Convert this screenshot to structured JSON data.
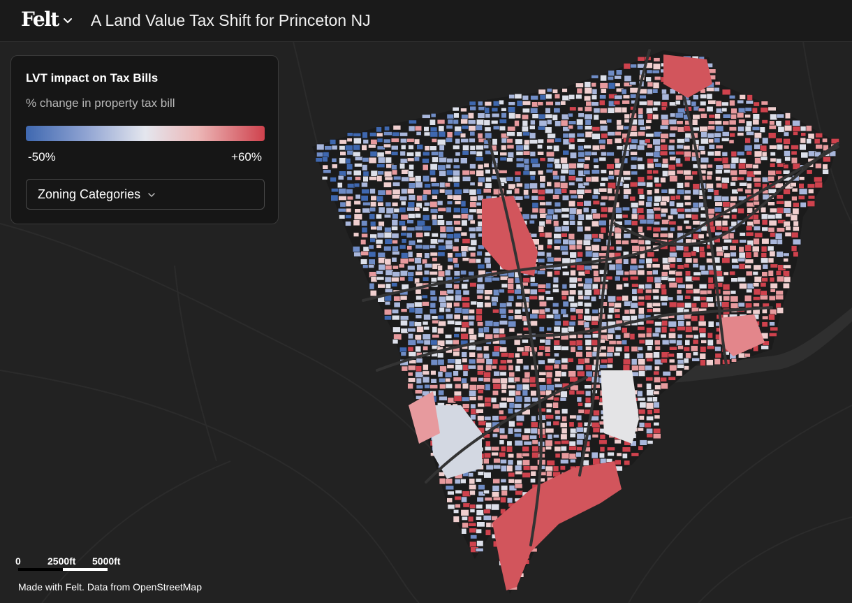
{
  "header": {
    "logo_text": "Felt",
    "chevron_icon": "chevron-down-icon",
    "title": "A Land Value Tax Shift for Princeton NJ"
  },
  "legend": {
    "title": "LVT impact on Tax Bills",
    "subtitle": "% change in property tax bill",
    "ramp_colors": [
      "#3f68b0",
      "#8fa3d2",
      "#e4e6ee",
      "#ecb7b7",
      "#cf424d"
    ],
    "min_label": "-50%",
    "max_label": "+60%",
    "dropdown_label": "Zoning Categories",
    "dropdown_icon": "chevron-down-icon"
  },
  "scale_bar": {
    "labels": [
      "0",
      "2500ft",
      "5000ft"
    ]
  },
  "attribution": "Made with Felt. Data from OpenStreetMap",
  "map": {
    "background_color": "#222222",
    "parcel_colors": [
      "#3f68b0",
      "#6f8cc6",
      "#a9b7dc",
      "#dde0ea",
      "#f0cfcf",
      "#e79a9e",
      "#cf424d"
    ]
  }
}
